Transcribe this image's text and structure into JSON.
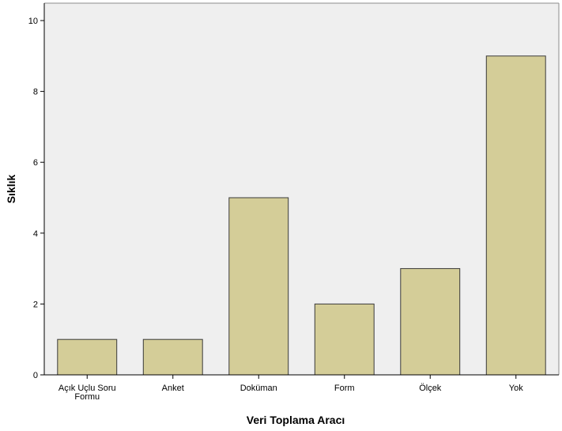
{
  "chart_data": {
    "type": "bar",
    "xlabel": "Veri Toplama Aracı",
    "ylabel": "Sıklık",
    "categories": [
      [
        "Açık Uçlu Soru",
        "Formu"
      ],
      [
        "Anket"
      ],
      [
        "Doküman"
      ],
      [
        "Form"
      ],
      [
        "Ölçek"
      ],
      [
        "Yok"
      ]
    ],
    "values": [
      1,
      1,
      5,
      2,
      3,
      9
    ],
    "ylim": [
      0,
      10
    ],
    "yticks": [
      "0",
      "2",
      "4",
      "6",
      "8",
      "10"
    ],
    "grid": false,
    "legend": "none",
    "colors": {
      "plot_background": "#efefef",
      "bar_fill": "#d4cd98",
      "bar_stroke": "#3a3a3a",
      "axis": "#000000"
    }
  }
}
